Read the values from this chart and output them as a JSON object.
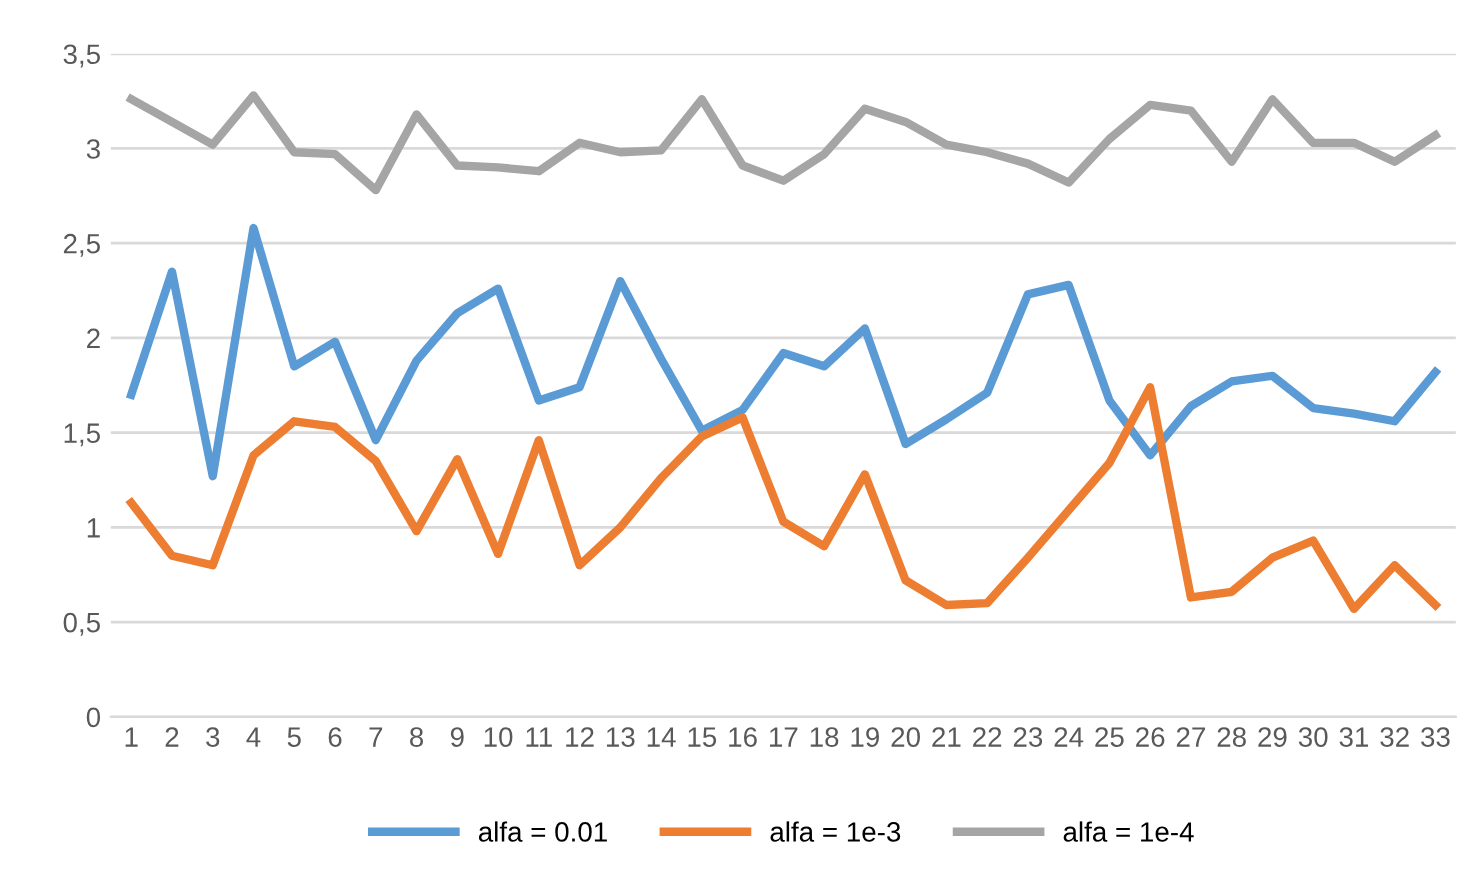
{
  "chart_data": {
    "type": "line",
    "categories": [
      "1",
      "2",
      "3",
      "4",
      "5",
      "6",
      "7",
      "8",
      "9",
      "10",
      "11",
      "12",
      "13",
      "14",
      "15",
      "16",
      "17",
      "18",
      "19",
      "20",
      "21",
      "22",
      "23",
      "24",
      "25",
      "26",
      "27",
      "28",
      "29",
      "30",
      "31",
      "32",
      "33"
    ],
    "series": [
      {
        "name": "alfa = 0.01",
        "color": "#5b9bd5",
        "values": [
          1.7,
          2.35,
          1.27,
          2.58,
          1.85,
          1.98,
          1.46,
          1.88,
          2.13,
          2.26,
          1.67,
          1.74,
          2.3,
          1.89,
          1.51,
          1.62,
          1.92,
          1.85,
          2.05,
          1.44,
          1.57,
          1.71,
          2.23,
          2.28,
          1.67,
          1.38,
          1.64,
          1.77,
          1.8,
          1.63,
          1.6,
          1.56,
          1.82
        ]
      },
      {
        "name": "alfa = 1e-3",
        "color": "#ed7d31",
        "values": [
          1.13,
          0.85,
          0.8,
          1.38,
          1.56,
          1.53,
          1.35,
          0.98,
          1.36,
          0.86,
          1.46,
          0.8,
          1.0,
          1.26,
          1.48,
          1.58,
          1.03,
          0.9,
          1.28,
          0.72,
          0.59,
          0.6,
          0.84,
          1.09,
          1.34,
          1.74,
          0.63,
          0.66,
          0.84,
          0.93,
          0.57,
          0.8,
          0.59
        ]
      },
      {
        "name": "alfa = 1e-4",
        "color": "#a5a5a5",
        "values": [
          3.26,
          3.14,
          3.02,
          3.28,
          2.98,
          2.97,
          2.78,
          3.18,
          2.91,
          2.9,
          2.88,
          3.03,
          2.98,
          2.99,
          3.26,
          2.91,
          2.83,
          2.97,
          3.21,
          3.14,
          3.02,
          2.98,
          2.92,
          2.82,
          3.05,
          3.23,
          3.2,
          2.93,
          3.26,
          3.03,
          3.03,
          2.93,
          3.07
        ]
      }
    ],
    "ylim": [
      0,
      3.5
    ],
    "yticks": [
      0,
      {
        "value": 0.5,
        "label": "0,5"
      },
      1,
      {
        "value": 1.5,
        "label": "1,5"
      },
      2,
      {
        "value": 2.5,
        "label": "2,5"
      },
      3,
      {
        "value": 3.5,
        "label": "3,5"
      }
    ],
    "grid": "y",
    "legend": "bottom",
    "marker": "none",
    "line_style": "solid"
  }
}
